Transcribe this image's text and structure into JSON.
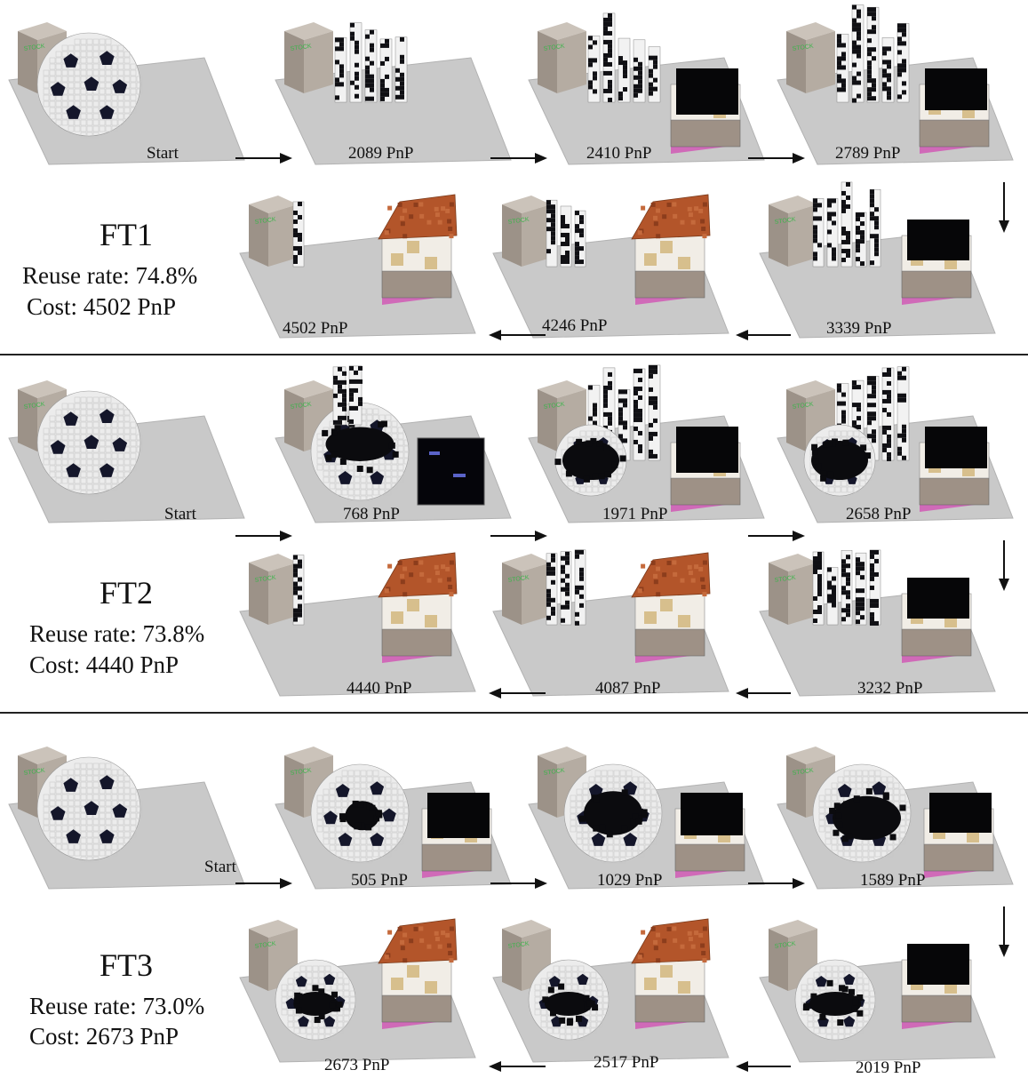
{
  "colors": {
    "floor": "#c9c9c9",
    "floor_edge": "#b2b2b2",
    "stock_box": "#b5aca2",
    "stock_box_dark": "#9c9288",
    "stock_label": "#3cb44b",
    "ball_white": "#ececec",
    "ball_black": "#14162a",
    "roof": "#b3552a",
    "wall": "#f1ede6",
    "window": "#d7bf8d",
    "base": "#9e9186",
    "base_trim": "#d06ab8"
  },
  "icons": {
    "stock": "stock-box-icon",
    "ball": "voxel-soccer-ball-icon",
    "house": "voxel-house-icon",
    "pillars": "voxel-pillars-icon",
    "arrow_right": "arrow-right-icon",
    "arrow_left": "arrow-left-icon",
    "arrow_down": "arrow-down-icon"
  },
  "stock_label": "STOCK",
  "sections": [
    {
      "title": "FT1",
      "reuse": "Reuse rate: 74.8%",
      "cost": "Cost: 4502 PnP",
      "top": [
        {
          "label": "Start"
        },
        {
          "label": "2089 PnP"
        },
        {
          "label": "2410 PnP"
        },
        {
          "label": "2789 PnP"
        }
      ],
      "bottom": [
        {
          "label": "4502 PnP"
        },
        {
          "label": "4246 PnP"
        },
        {
          "label": "3339 PnP"
        }
      ]
    },
    {
      "title": "FT2",
      "reuse": "Reuse rate: 73.8%",
      "cost": "Cost: 4440 PnP",
      "top": [
        {
          "label": "Start"
        },
        {
          "label": "768 PnP"
        },
        {
          "label": "1971 PnP"
        },
        {
          "label": "2658 PnP"
        }
      ],
      "bottom": [
        {
          "label": "4440 PnP"
        },
        {
          "label": "4087 PnP"
        },
        {
          "label": "3232 PnP"
        }
      ]
    },
    {
      "title": "FT3",
      "reuse": "Reuse rate: 73.0%",
      "cost": "Cost: 2673 PnP",
      "top": [
        {
          "label": "Start"
        },
        {
          "label": "505 PnP"
        },
        {
          "label": "1029 PnP"
        },
        {
          "label": "1589 PnP"
        }
      ],
      "bottom": [
        {
          "label": "2673 PnP"
        },
        {
          "label": "2517 PnP"
        },
        {
          "label": "2019 PnP"
        }
      ]
    }
  ]
}
